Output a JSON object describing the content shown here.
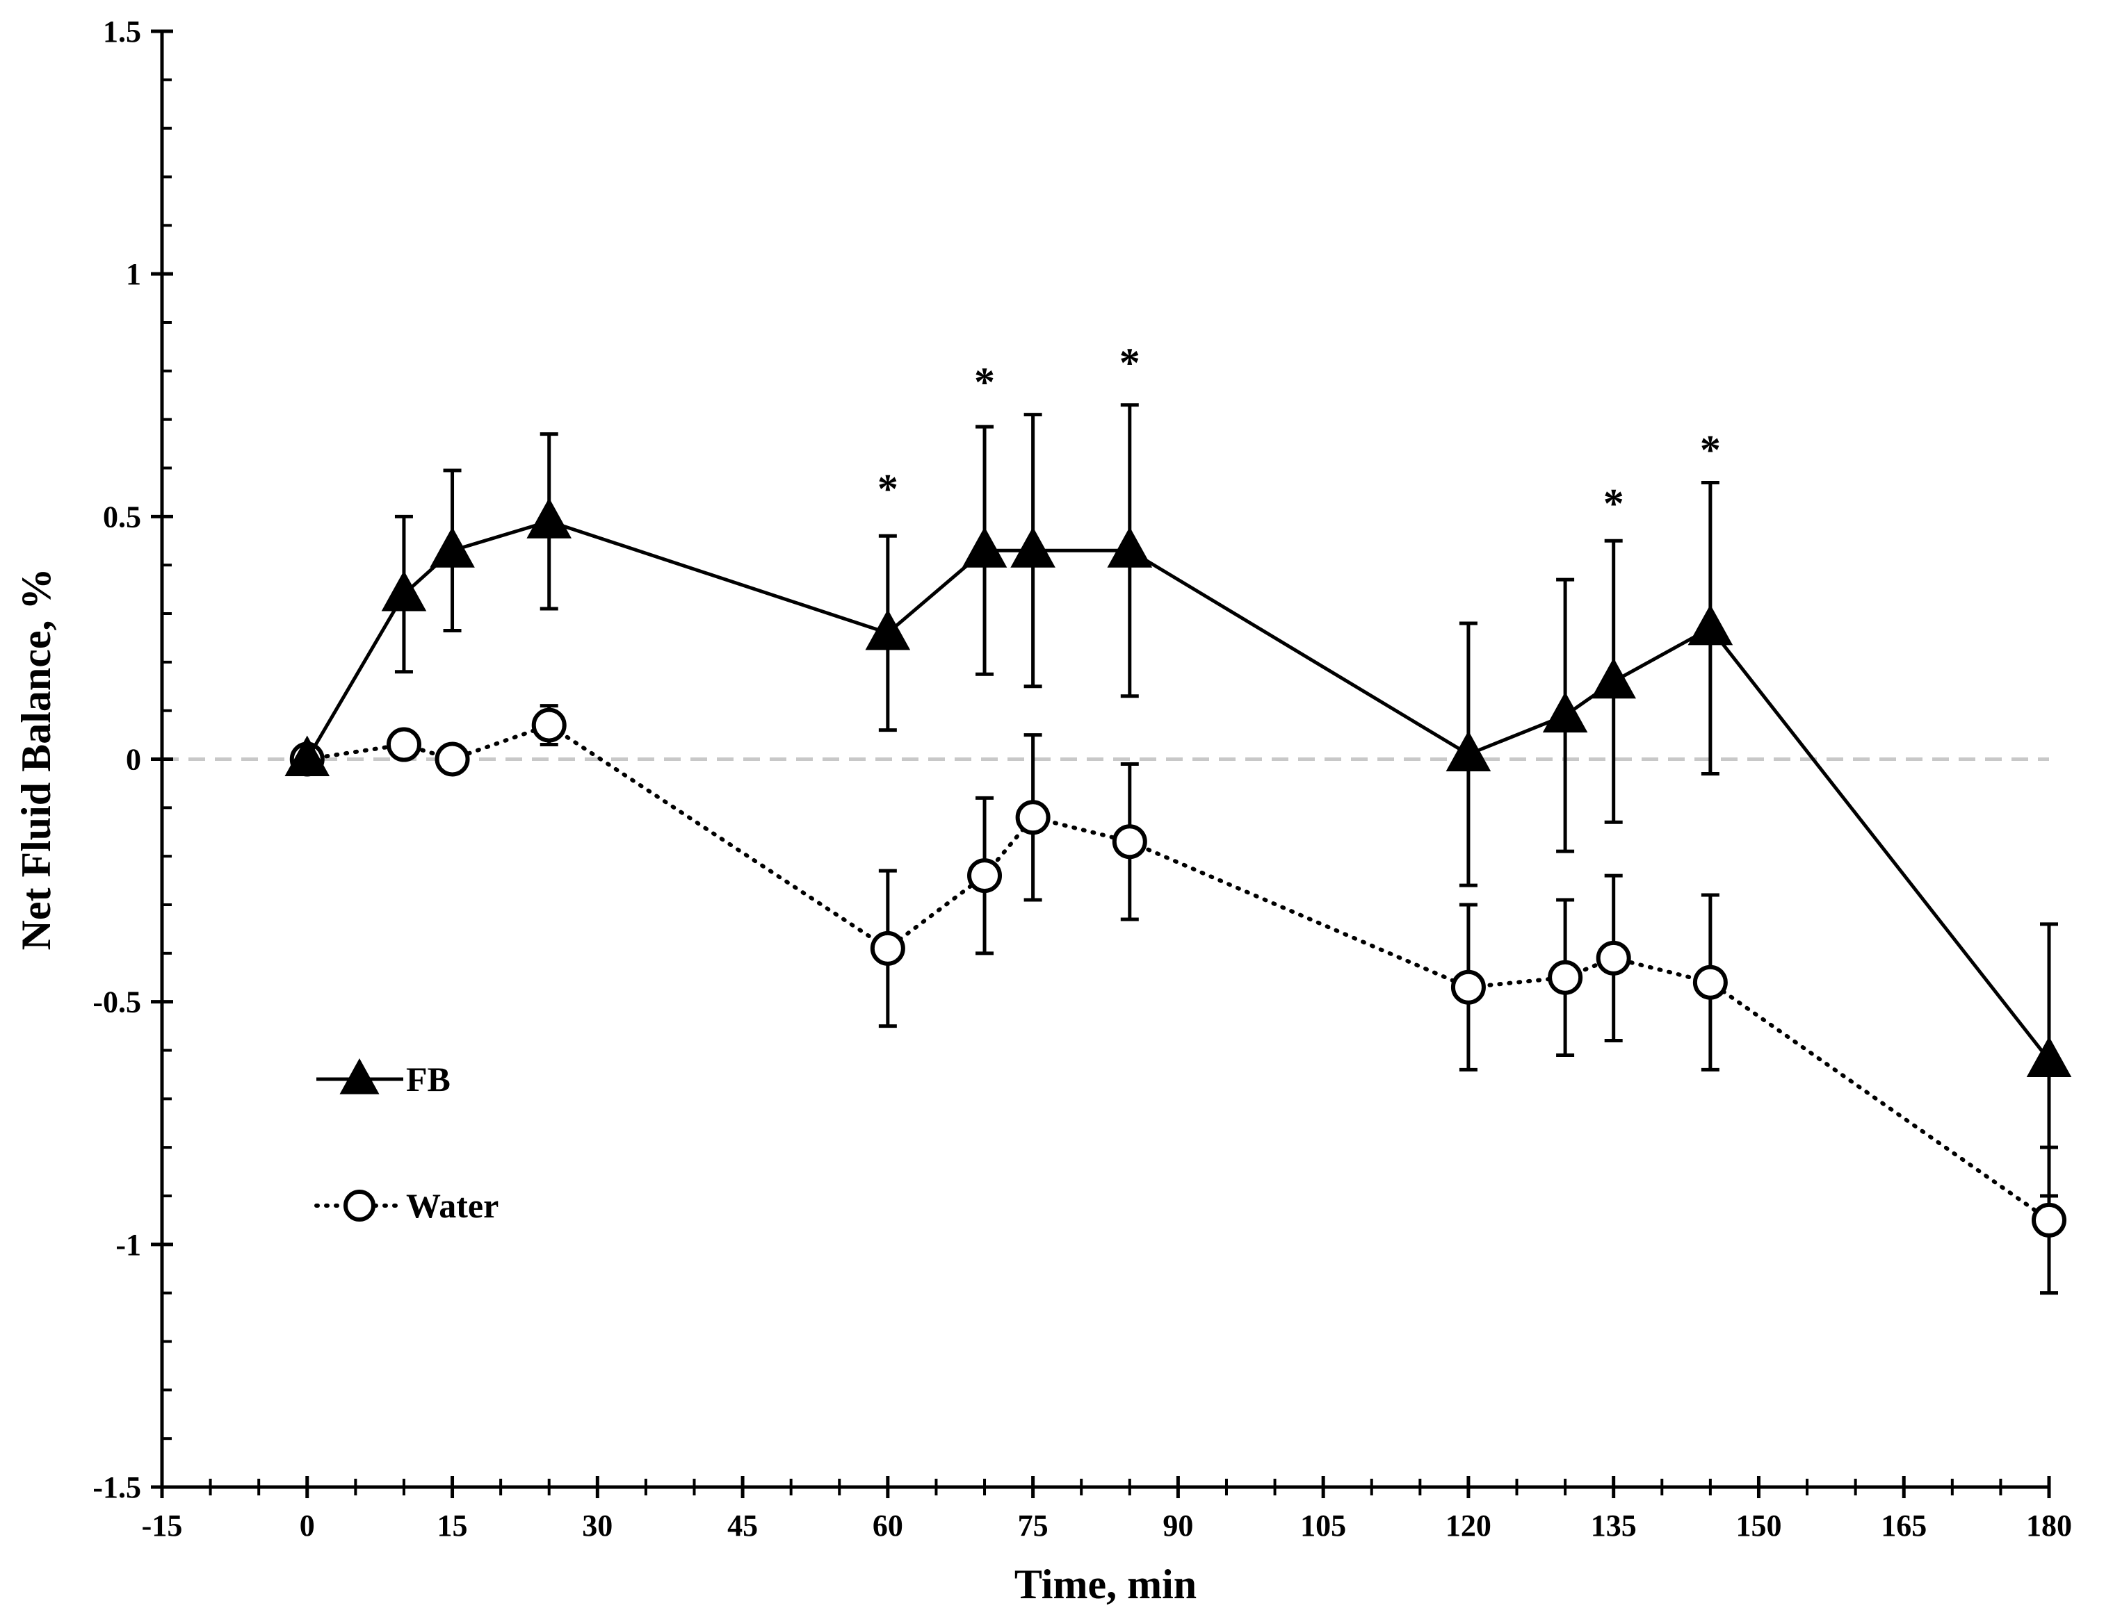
{
  "chart_data": {
    "type": "line",
    "title": "",
    "xlabel": "Time, min",
    "ylabel": "Net Fluid Balance, %",
    "xlim": [
      -15,
      180
    ],
    "ylim": [
      -1.5,
      1.5
    ],
    "x_ticks": [
      -15,
      0,
      15,
      30,
      45,
      60,
      75,
      90,
      105,
      120,
      135,
      150,
      165,
      180
    ],
    "x_tick_labels": [
      "-15",
      "0",
      "15",
      "30",
      "45",
      "60",
      "75",
      "90",
      "105",
      "120",
      "135",
      "150",
      "165",
      "180"
    ],
    "y_ticks": [
      -1.5,
      -1,
      -0.5,
      0,
      0.5,
      1,
      1.5
    ],
    "y_tick_labels": [
      "-1.5",
      "-1",
      "-0.5",
      "0",
      "0.5",
      "1",
      "1.5"
    ],
    "reference_line": {
      "y": 0,
      "style": "dashed",
      "color": "#c8c8c8"
    },
    "series": [
      {
        "name": "FB",
        "marker": "filled-triangle",
        "line_style": "solid",
        "color": "#000000",
        "x": [
          0,
          10,
          15,
          25,
          60,
          70,
          75,
          85,
          120,
          130,
          135,
          145,
          180
        ],
        "y": [
          0,
          0.34,
          0.43,
          0.49,
          0.26,
          0.43,
          0.43,
          0.43,
          0.01,
          0.09,
          0.16,
          0.27,
          -0.62
        ],
        "error": [
          0,
          0.16,
          0.165,
          0.18,
          0.2,
          0.255,
          0.28,
          0.3,
          0.27,
          0.28,
          0.29,
          0.3,
          0.28
        ]
      },
      {
        "name": "Water",
        "marker": "open-circle",
        "line_style": "dotted",
        "color": "#000000",
        "x": [
          0,
          10,
          15,
          25,
          60,
          70,
          75,
          85,
          120,
          130,
          135,
          145,
          180
        ],
        "y": [
          0,
          0.03,
          0,
          0.07,
          -0.39,
          -0.24,
          -0.12,
          -0.17,
          -0.47,
          -0.45,
          -0.41,
          -0.46,
          -0.95
        ],
        "error": [
          0,
          0,
          0,
          0.04,
          0.16,
          0.16,
          0.17,
          0.16,
          0.17,
          0.16,
          0.17,
          0.18,
          0.15
        ]
      }
    ],
    "significance_marks": [
      {
        "x": 60,
        "y": 0.56,
        "label": "*"
      },
      {
        "x": 70,
        "y": 0.78,
        "label": "*"
      },
      {
        "x": 85,
        "y": 0.82,
        "label": "*"
      },
      {
        "x": 135,
        "y": 0.53,
        "label": "*"
      },
      {
        "x": 145,
        "y": 0.64,
        "label": "*"
      }
    ],
    "legend": {
      "position": "bottom-left",
      "entries": [
        "FB",
        "Water"
      ]
    }
  }
}
